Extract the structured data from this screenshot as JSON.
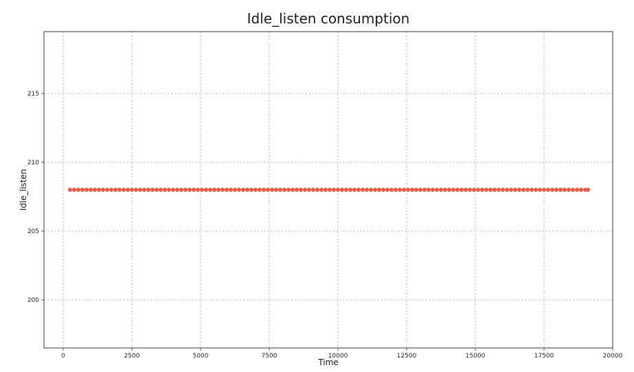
{
  "chart_data": {
    "type": "line",
    "title": "Idle_listen consumption",
    "xlabel": "Time",
    "ylabel": "Idle_listen",
    "xlim": [
      -700,
      20000
    ],
    "ylim": [
      196.5,
      219.5
    ],
    "xticks": [
      {
        "value": 0,
        "label": "0"
      },
      {
        "value": 2500,
        "label": "2500"
      },
      {
        "value": 5000,
        "label": "5000"
      },
      {
        "value": 7500,
        "label": "7500"
      },
      {
        "value": 10000,
        "label": "10000"
      },
      {
        "value": 12500,
        "label": "12500"
      },
      {
        "value": 15000,
        "label": "15000"
      },
      {
        "value": 17500,
        "label": "17500"
      },
      {
        "value": 20000,
        "label": "20000"
      }
    ],
    "yticks": [
      {
        "value": 200,
        "label": "200"
      },
      {
        "value": 205,
        "label": "205"
      },
      {
        "value": 210,
        "label": "210"
      },
      {
        "value": 215,
        "label": "215"
      }
    ],
    "grid": true,
    "color": "#ee5a3f",
    "marker": "circle",
    "series": [
      {
        "x": [
          250,
          400,
          550,
          700,
          850,
          1000,
          1150,
          1300,
          1450,
          1600,
          1750,
          1900,
          2050,
          2200,
          2350,
          2500,
          2650,
          2800,
          2950,
          3100,
          3250,
          3400,
          3550,
          3700,
          3850,
          4000,
          4150,
          4300,
          4450,
          4600,
          4750,
          4900,
          5050,
          5200,
          5350,
          5500,
          5650,
          5800,
          5950,
          6100,
          6250,
          6400,
          6550,
          6700,
          6850,
          7000,
          7150,
          7300,
          7450,
          7600,
          7750,
          7900,
          8050,
          8200,
          8350,
          8500,
          8650,
          8800,
          8950,
          9100,
          9250,
          9400,
          9550,
          9700,
          9850,
          10000,
          10150,
          10300,
          10450,
          10600,
          10750,
          10900,
          11050,
          11200,
          11350,
          11500,
          11650,
          11800,
          11950,
          12100,
          12250,
          12400,
          12550,
          12700,
          12850,
          13000,
          13150,
          13300,
          13450,
          13600,
          13750,
          13900,
          14050,
          14200,
          14350,
          14500,
          14650,
          14800,
          14950,
          15100,
          15250,
          15400,
          15550,
          15700,
          15850,
          16000,
          16150,
          16300,
          16450,
          16600,
          16750,
          16900,
          17050,
          17200,
          17350,
          17500,
          17650,
          17800,
          17950,
          18100,
          18250,
          18400,
          18550,
          18700,
          18850,
          19000,
          19100
        ],
        "y": [
          208,
          208,
          208,
          208,
          208,
          208,
          208,
          208,
          208,
          208,
          208,
          208,
          208,
          208,
          208,
          208,
          208,
          208,
          208,
          208,
          208,
          208,
          208,
          208,
          208,
          208,
          208,
          208,
          208,
          208,
          208,
          208,
          208,
          208,
          208,
          208,
          208,
          208,
          208,
          208,
          208,
          208,
          208,
          208,
          208,
          208,
          208,
          208,
          208,
          208,
          208,
          208,
          208,
          208,
          208,
          208,
          208,
          208,
          208,
          208,
          208,
          208,
          208,
          208,
          208,
          208,
          208,
          208,
          208,
          208,
          208,
          208,
          208,
          208,
          208,
          208,
          208,
          208,
          208,
          208,
          208,
          208,
          208,
          208,
          208,
          208,
          208,
          208,
          208,
          208,
          208,
          208,
          208,
          208,
          208,
          208,
          208,
          208,
          208,
          208,
          208,
          208,
          208,
          208,
          208,
          208,
          208,
          208,
          208,
          208,
          208,
          208,
          208,
          208,
          208,
          208,
          208,
          208,
          208,
          208,
          208,
          208,
          208,
          208,
          208,
          208,
          208
        ]
      }
    ]
  }
}
